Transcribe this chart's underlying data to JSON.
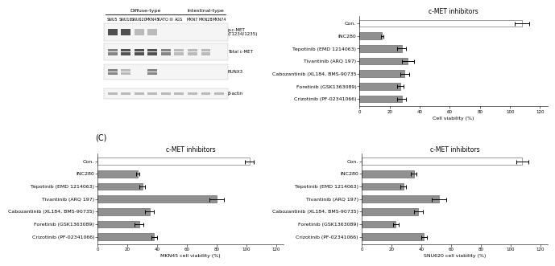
{
  "top_right": {
    "title": "c-MET inhibitors",
    "xlabel": "Cell viability (%)",
    "categories": [
      "Con.",
      "INC280",
      "Tepotinib (EMD 1214063)",
      "Tivantinib (ARQ 197)",
      "Cabozantinib (XL184, BMS-90735",
      "Foretinib (GSK1363089)",
      "Crizotinib (PF-02341066)"
    ],
    "values": [
      108,
      15,
      28,
      32,
      30,
      27,
      28
    ],
    "errors": [
      5,
      1,
      3,
      4,
      3,
      2,
      3
    ],
    "bar_colors": [
      "white",
      "#909090",
      "#909090",
      "#909090",
      "#909090",
      "#909090",
      "#909090"
    ],
    "xlim": [
      0,
      125
    ],
    "xticks": [
      0,
      20,
      40,
      60,
      80,
      100,
      120
    ]
  },
  "bottom_left": {
    "title": "c-MET inhibitors",
    "xlabel": "MKN45 cell viability (%)",
    "categories": [
      "Con.",
      "INC280",
      "Tepotinib (EMD 1214063)",
      "Tivantinib (ARQ 197)",
      "Cabozantinib (XL184, BMS-90735)",
      "Foretinib (GSK1363089)",
      "Crizotinib (PF-02341066)"
    ],
    "values": [
      102,
      27,
      30,
      80,
      35,
      28,
      38
    ],
    "errors": [
      3,
      1,
      2,
      5,
      3,
      3,
      2
    ],
    "bar_colors": [
      "white",
      "#909090",
      "#909090",
      "#909090",
      "#909090",
      "#909090",
      "#909090"
    ],
    "xlim": [
      0,
      125
    ],
    "xticks": [
      0,
      20,
      40,
      60,
      80,
      100,
      120
    ]
  },
  "bottom_right": {
    "title": "c-MET inhibitors",
    "xlabel": "SNU620 cell viability (%)",
    "categories": [
      "Con.",
      "INC280",
      "Tepotinib (EMD 1214063)",
      "Tivantinib (ARQ 197)",
      "Cabozantinib (XL184, BMS-90735)",
      "Foretinib (GSK1363089)",
      "Crizotinib (PF-02341066)"
    ],
    "values": [
      108,
      35,
      28,
      52,
      38,
      23,
      42
    ],
    "errors": [
      4,
      2,
      2,
      5,
      3,
      2,
      2
    ],
    "bar_colors": [
      "white",
      "#909090",
      "#909090",
      "#909090",
      "#909090",
      "#909090",
      "#909090"
    ],
    "xlim": [
      0,
      125
    ],
    "xticks": [
      0,
      20,
      40,
      60,
      80,
      100,
      120
    ]
  },
  "panel_c_label": "(C)",
  "figure_bg": "#ffffff",
  "bar_edge_color": "#555555",
  "bar_linewidth": 0.4,
  "title_fontsize": 5.5,
  "label_fontsize": 4.5,
  "tick_fontsize": 4.0,
  "wb_row_label_fontsize": 4.0,
  "wb_col_label_fontsize": 3.5,
  "wb_header_fontsize": 4.5,
  "wb_band_patterns": [
    [
      3,
      3,
      1,
      1,
      0,
      0,
      0,
      0,
      0
    ],
    [
      2,
      3,
      3,
      3,
      2,
      1,
      1,
      1,
      0
    ],
    [
      2,
      1,
      0,
      2,
      0,
      0,
      0,
      0,
      0
    ],
    [
      1,
      1,
      1,
      1,
      1,
      1,
      1,
      1,
      1
    ]
  ],
  "wb_row_labels": [
    "p-c-MET\n(T1234/1235)",
    "Total c-MET",
    "RUNX3",
    "β-actin"
  ],
  "wb_diffuse_labels": [
    "SNU5",
    "SNU16",
    "SNU620",
    "MKN45",
    "KATO III",
    "AGS"
  ],
  "wb_intestinal_labels": [
    "MKN7",
    "MKN28",
    "MKN74"
  ],
  "wb_diffuse_header": "Diffuse-type",
  "wb_intestinal_header": "Intestinal-type",
  "wb_gray_levels": [
    "#e8e8e8",
    "#b0b0b0",
    "#707070",
    "#333333"
  ]
}
